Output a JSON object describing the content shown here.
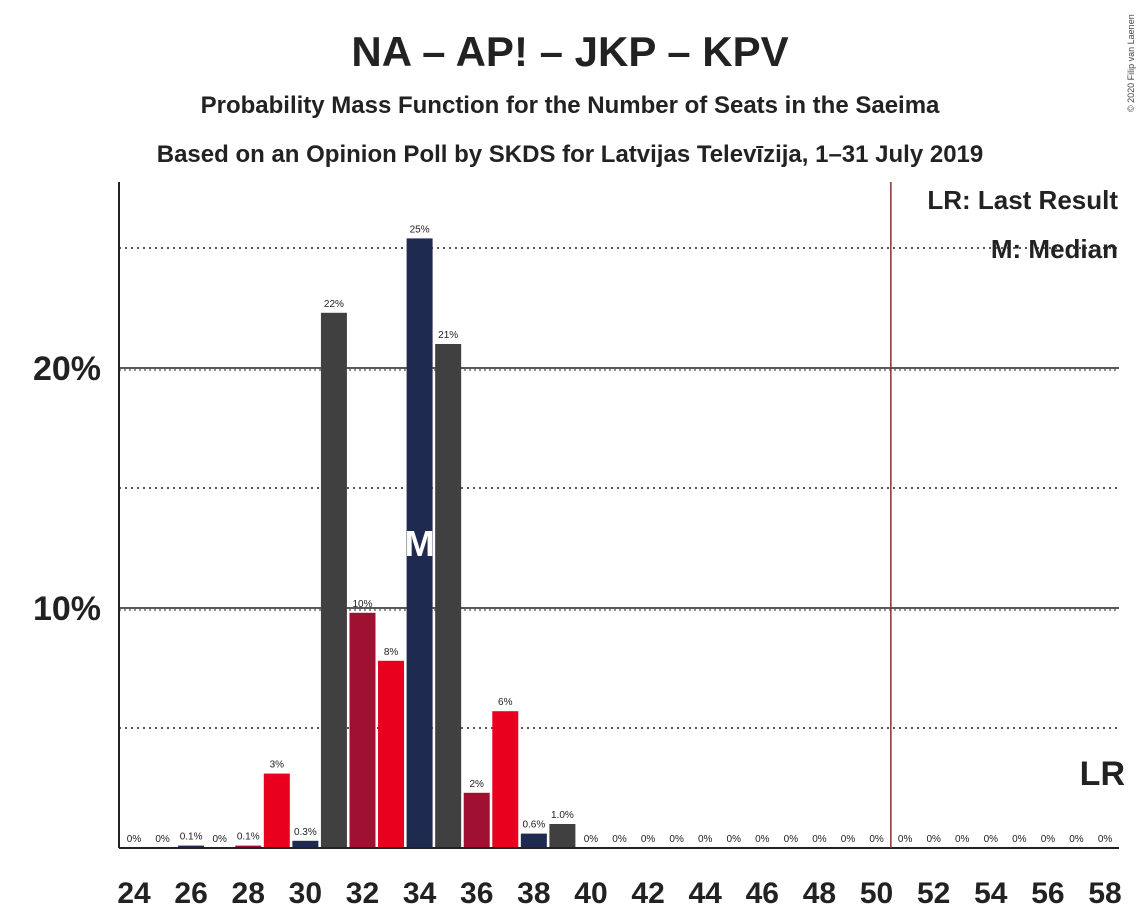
{
  "chart_data": {
    "type": "bar",
    "title": "NA – AP! – JKP – KPV",
    "subtitle1": "Probability Mass Function for the Number of Seats in the Saeima",
    "subtitle2": "Based on an Opinion Poll by SKDS for Latvijas Televīzija, 1–31 July 2019",
    "copyright": "© 2020 Filip van Laenen",
    "x": [
      24,
      25,
      26,
      27,
      28,
      29,
      30,
      31,
      32,
      33,
      34,
      35,
      36,
      37,
      38,
      39,
      40,
      41,
      42,
      43,
      44,
      45,
      46,
      47,
      48,
      49,
      50,
      51,
      52,
      53,
      54,
      55,
      56,
      57,
      58
    ],
    "values": [
      0,
      0,
      0.1,
      0,
      0.1,
      3.1,
      0.3,
      22.3,
      9.8,
      7.8,
      25.4,
      21.0,
      2.3,
      5.7,
      0.6,
      1.0,
      0,
      0,
      0,
      0,
      0,
      0,
      0,
      0,
      0,
      0,
      0,
      0,
      0,
      0,
      0,
      0,
      0,
      0,
      0
    ],
    "labels": [
      "0%",
      "0%",
      "0.1%",
      "0%",
      "0.1%",
      "3%",
      "0.3%",
      "22%",
      "10%",
      "8%",
      "25%",
      "21%",
      "2%",
      "6%",
      "0.6%",
      "1.0%",
      "0%",
      "0%",
      "0%",
      "0%",
      "0%",
      "0%",
      "0%",
      "0%",
      "0%",
      "0%",
      "0%",
      "0%",
      "0%",
      "0%",
      "0%",
      "0%",
      "0%",
      "0%",
      "0%"
    ],
    "colors": {
      "24": "#a01030",
      "25": "#e8001e",
      "26": "#1f2a50",
      "27": "#404040",
      "28": "#a01030",
      "29": "#e8001e",
      "30": "#1f2a50",
      "31": "#404040",
      "32": "#a01030",
      "33": "#e8001e",
      "34": "#1f2a50",
      "35": "#404040",
      "36": "#a01030",
      "37": "#e8001e",
      "38": "#1f2a50",
      "39": "#404040"
    },
    "xticks": [
      24,
      26,
      28,
      30,
      32,
      34,
      36,
      38,
      40,
      42,
      44,
      46,
      48,
      50,
      52,
      54,
      56,
      58
    ],
    "xtick_labels": [
      "24",
      "26",
      "28",
      "30",
      "32",
      "34",
      "36",
      "38",
      "40",
      "42",
      "44",
      "46",
      "48",
      "50",
      "52",
      "54",
      "56",
      "58"
    ],
    "yticks": [
      10,
      20
    ],
    "ytick_labels": [
      "10%",
      "20%"
    ],
    "ylim": [
      0,
      27.5
    ],
    "minor_gridlines": [
      5,
      15,
      25
    ],
    "median": 34,
    "median_label": "M",
    "last_result": 51,
    "last_result_label": "LR",
    "legend": [
      "LR: Last Result",
      "M: Median"
    ],
    "legend_position": "top-right",
    "grid": true
  }
}
